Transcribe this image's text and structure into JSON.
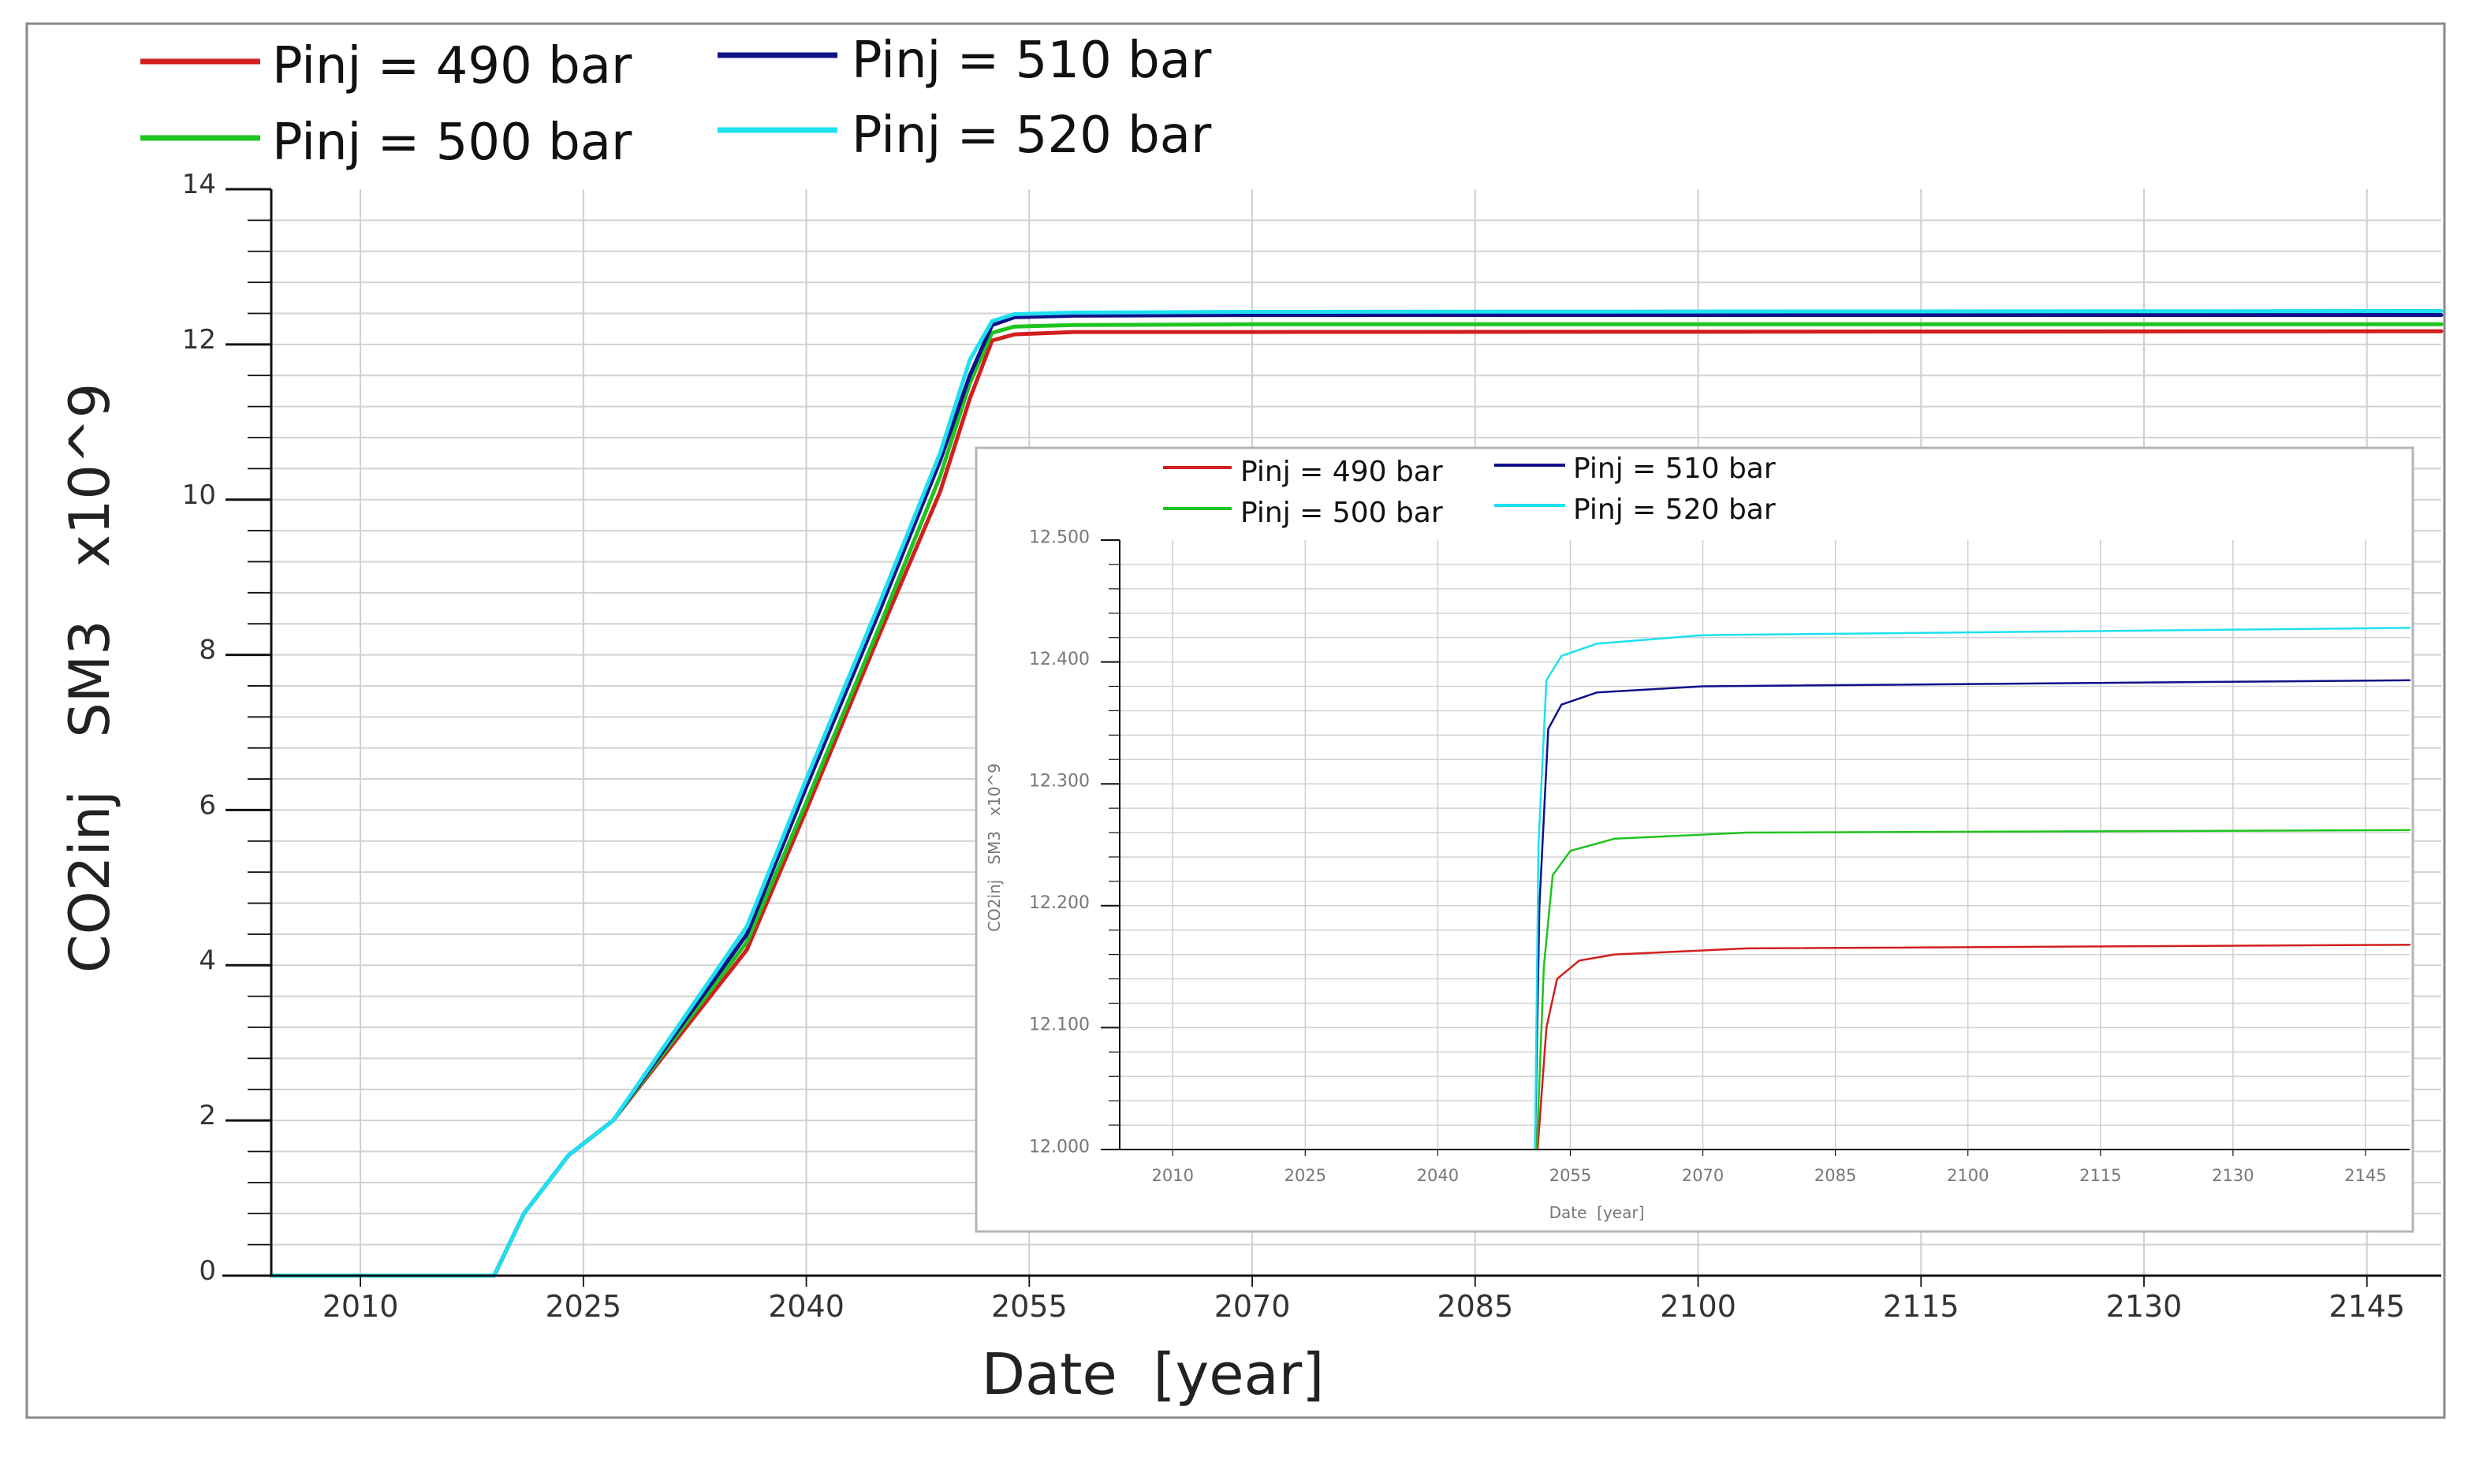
{
  "chart_data": [
    {
      "type": "line",
      "id": "main",
      "xlabel": "Date  [year]",
      "ylabel": "CO2inj   SM3   x10^9",
      "xlim": [
        2004,
        2150
      ],
      "ylim": [
        0,
        14
      ],
      "xticks": [
        2010,
        2025,
        2040,
        2055,
        2070,
        2085,
        2100,
        2115,
        2130,
        2145
      ],
      "yticks": [
        0,
        2,
        4,
        6,
        8,
        10,
        12,
        14
      ],
      "grid": true,
      "legend_position": "top",
      "series": [
        {
          "name": "Pinj = 490 bar",
          "color": "#d11f1f",
          "points": [
            [
              2004,
              0
            ],
            [
              2013,
              0
            ],
            [
              2019,
              0
            ],
            [
              2021,
              0.8
            ],
            [
              2024,
              1.55
            ],
            [
              2027,
              2.0
            ],
            [
              2036,
              4.2
            ],
            [
              2040,
              6.0
            ],
            [
              2045,
              8.3
            ],
            [
              2049,
              10.1
            ],
            [
              2051,
              11.3
            ],
            [
              2052.5,
              12.05
            ],
            [
              2054,
              12.13
            ],
            [
              2058,
              12.16
            ],
            [
              2070,
              12.16
            ],
            [
              2150,
              12.17
            ]
          ]
        },
        {
          "name": "Pinj = 500 bar",
          "color": "#1fc41f",
          "points": [
            [
              2004,
              0
            ],
            [
              2013,
              0
            ],
            [
              2019,
              0
            ],
            [
              2021,
              0.8
            ],
            [
              2024,
              1.55
            ],
            [
              2027,
              2.0
            ],
            [
              2036,
              4.3
            ],
            [
              2040,
              6.1
            ],
            [
              2045,
              8.4
            ],
            [
              2049,
              10.3
            ],
            [
              2051,
              11.5
            ],
            [
              2052.5,
              12.15
            ],
            [
              2054,
              12.23
            ],
            [
              2058,
              12.25
            ],
            [
              2070,
              12.26
            ],
            [
              2150,
              12.26
            ]
          ]
        },
        {
          "name": "Pinj = 510 bar",
          "color": "#10108a",
          "points": [
            [
              2004,
              0
            ],
            [
              2013,
              0
            ],
            [
              2019,
              0
            ],
            [
              2021,
              0.8
            ],
            [
              2024,
              1.55
            ],
            [
              2027,
              2.0
            ],
            [
              2036,
              4.4
            ],
            [
              2040,
              6.3
            ],
            [
              2045,
              8.6
            ],
            [
              2049,
              10.5
            ],
            [
              2051,
              11.6
            ],
            [
              2052.5,
              12.25
            ],
            [
              2054,
              12.35
            ],
            [
              2058,
              12.37
            ],
            [
              2070,
              12.38
            ],
            [
              2150,
              12.38
            ]
          ]
        },
        {
          "name": "Pinj = 520 bar",
          "color": "#1ee0f0",
          "points": [
            [
              2004,
              0
            ],
            [
              2013,
              0
            ],
            [
              2019,
              0
            ],
            [
              2021,
              0.8
            ],
            [
              2024,
              1.55
            ],
            [
              2027,
              2.0
            ],
            [
              2036,
              4.5
            ],
            [
              2040,
              6.4
            ],
            [
              2045,
              8.7
            ],
            [
              2049,
              10.6
            ],
            [
              2051,
              11.8
            ],
            [
              2052.5,
              12.3
            ],
            [
              2054,
              12.39
            ],
            [
              2058,
              12.41
            ],
            [
              2070,
              12.42
            ],
            [
              2150,
              12.43
            ]
          ]
        }
      ]
    },
    {
      "type": "line",
      "id": "inset",
      "xlabel": "Date  [year]",
      "ylabel": "CO2inj   SM3   x10^9",
      "xlim": [
        2004,
        2150
      ],
      "ylim": [
        12.0,
        12.5
      ],
      "xticks": [
        2010,
        2025,
        2040,
        2055,
        2070,
        2085,
        2100,
        2115,
        2130,
        2145
      ],
      "yticks": [
        12.0,
        12.1,
        12.2,
        12.3,
        12.4,
        12.5
      ],
      "ytick_labels": [
        "12.000",
        "12.100",
        "12.200",
        "12.300",
        "12.400",
        "12.500"
      ],
      "grid": true,
      "legend_position": "top",
      "series": [
        {
          "name": "Pinj = 490 bar",
          "color": "#d11f1f",
          "points": [
            [
              2051.3,
              12.0
            ],
            [
              2052.3,
              12.1
            ],
            [
              2053.5,
              12.14
            ],
            [
              2056,
              12.155
            ],
            [
              2060,
              12.16
            ],
            [
              2075,
              12.165
            ],
            [
              2150,
              12.168
            ]
          ]
        },
        {
          "name": "Pinj = 500 bar",
          "color": "#1fc41f",
          "points": [
            [
              2051.2,
              12.0
            ],
            [
              2052.0,
              12.15
            ],
            [
              2053.0,
              12.225
            ],
            [
              2055,
              12.245
            ],
            [
              2060,
              12.255
            ],
            [
              2075,
              12.26
            ],
            [
              2150,
              12.262
            ]
          ]
        },
        {
          "name": "Pinj = 510 bar",
          "color": "#10108a",
          "points": [
            [
              2051.0,
              12.0
            ],
            [
              2051.5,
              12.2
            ],
            [
              2052.5,
              12.345
            ],
            [
              2054,
              12.365
            ],
            [
              2058,
              12.375
            ],
            [
              2070,
              12.38
            ],
            [
              2150,
              12.385
            ]
          ]
        },
        {
          "name": "Pinj = 520 bar",
          "color": "#1ee0f0",
          "points": [
            [
              2051.0,
              12.0
            ],
            [
              2051.4,
              12.25
            ],
            [
              2052.3,
              12.385
            ],
            [
              2054,
              12.405
            ],
            [
              2058,
              12.415
            ],
            [
              2070,
              12.422
            ],
            [
              2150,
              12.428
            ]
          ]
        }
      ]
    }
  ]
}
